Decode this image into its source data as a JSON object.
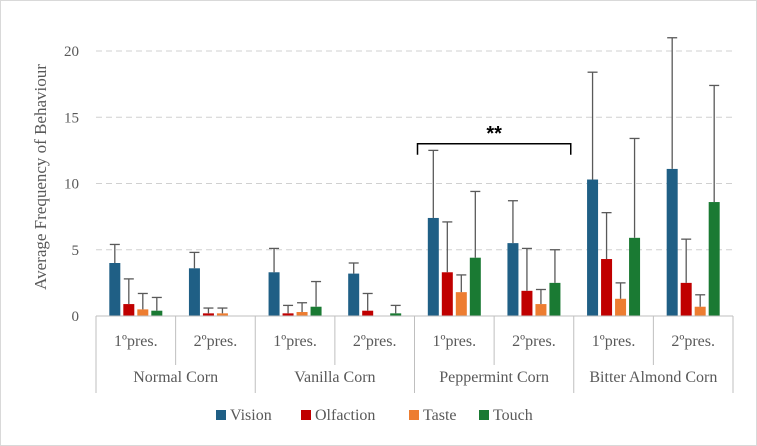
{
  "chart_data": {
    "type": "bar",
    "ylabel": "Average Frequency of Behaviour",
    "xlabel": "",
    "ylim": [
      0,
      22
    ],
    "yticks": [
      0,
      5,
      10,
      15,
      20
    ],
    "grid": "horizontal dashed",
    "legend_position": "bottom",
    "groups": [
      "Normal Corn",
      "Vanilla Corn",
      "Peppermint Corn",
      "Bitter Almond Corn"
    ],
    "subcategories": [
      "1ºpres.",
      "2ºpres."
    ],
    "categories": [
      "Normal Corn 1ºpres.",
      "Normal Corn 2ºpres.",
      "Vanilla Corn 1ºpres.",
      "Vanilla Corn 2ºpres.",
      "Peppermint Corn 1ºpres.",
      "Peppermint Corn 2ºpres.",
      "Bitter Almond Corn 1ºpres.",
      "Bitter Almond Corn 2ºpres."
    ],
    "series": [
      {
        "name": "Vision",
        "color": "#1f5f85",
        "values": [
          4.0,
          3.6,
          3.3,
          3.2,
          7.4,
          5.5,
          10.3,
          11.1
        ],
        "error_upper": [
          5.4,
          4.8,
          5.1,
          4.0,
          12.5,
          8.7,
          18.4,
          21.0
        ]
      },
      {
        "name": "Olfaction",
        "color": "#c00000",
        "values": [
          0.9,
          0.2,
          0.2,
          0.4,
          3.3,
          1.9,
          4.3,
          2.5
        ],
        "error_upper": [
          2.8,
          0.6,
          0.8,
          1.7,
          7.1,
          5.1,
          7.8,
          5.8
        ]
      },
      {
        "name": "Taste",
        "color": "#ed7d31",
        "values": [
          0.5,
          0.2,
          0.3,
          0.0,
          1.8,
          0.9,
          1.3,
          0.7
        ],
        "error_upper": [
          1.7,
          0.6,
          1.0,
          0.0,
          3.1,
          2.0,
          2.5,
          1.6
        ]
      },
      {
        "name": "Touch",
        "color": "#1a7a33",
        "values": [
          0.4,
          0.0,
          0.7,
          0.2,
          4.4,
          2.5,
          5.9,
          8.6
        ],
        "error_upper": [
          1.4,
          0.0,
          2.6,
          0.8,
          9.4,
          5.0,
          13.4,
          17.4
        ]
      }
    ],
    "annotation": {
      "text": "**",
      "from_category": "Peppermint Corn 1ºpres.",
      "to_category": "Peppermint Corn 2ºpres.",
      "y": 13.0
    }
  }
}
